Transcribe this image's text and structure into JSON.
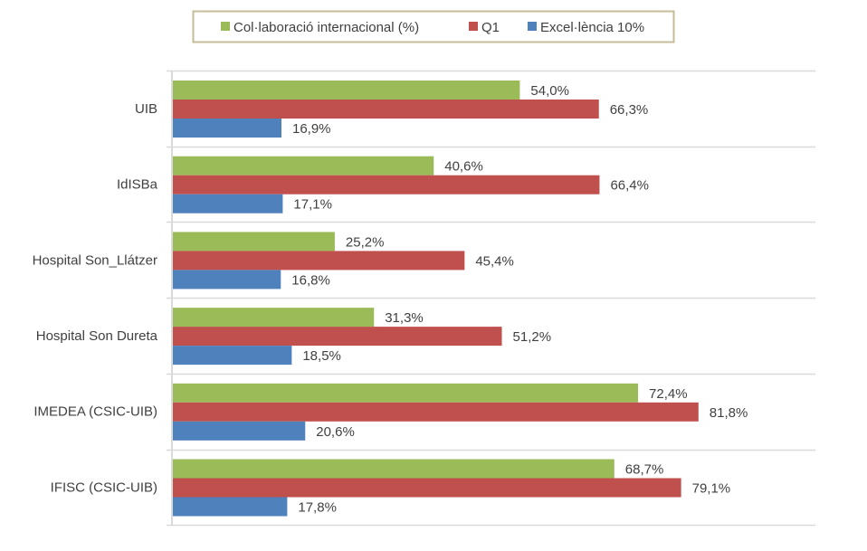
{
  "chart_data": {
    "type": "bar",
    "orientation": "horizontal",
    "title": "",
    "xlabel": "",
    "ylabel": "",
    "xlim": [
      0,
      100
    ],
    "grid": "horizontal separators between categories",
    "legend_position": "top",
    "categories": [
      "UIB",
      "IdISBa",
      "Hospital Son_Llátzer",
      "Hospital Son Dureta",
      "IMEDEA (CSIC-UIB)",
      "IFISC (CSIC-UIB)"
    ],
    "series": [
      {
        "name": "Col·laboració internacional (%)",
        "color": "#9BBB59",
        "values": [
          54.0,
          40.6,
          25.2,
          31.3,
          72.4,
          68.7
        ],
        "labels": [
          "54,0%",
          "40,6%",
          "25,2%",
          "31,3%",
          "72,4%",
          "68,7%"
        ]
      },
      {
        "name": "Q1",
        "color": "#C0504D",
        "values": [
          66.3,
          66.4,
          45.4,
          51.2,
          81.8,
          79.1
        ],
        "labels": [
          "66,3%",
          "66,4%",
          "45,4%",
          "51,2%",
          "81,8%",
          "79,1%"
        ]
      },
      {
        "name": "Excel·lència 10%",
        "color": "#4F81BD",
        "values": [
          16.9,
          17.1,
          16.8,
          18.5,
          20.6,
          17.8
        ],
        "labels": [
          "16,9%",
          "17,1%",
          "16,8%",
          "18,5%",
          "20,6%",
          "17,8%"
        ]
      }
    ]
  }
}
